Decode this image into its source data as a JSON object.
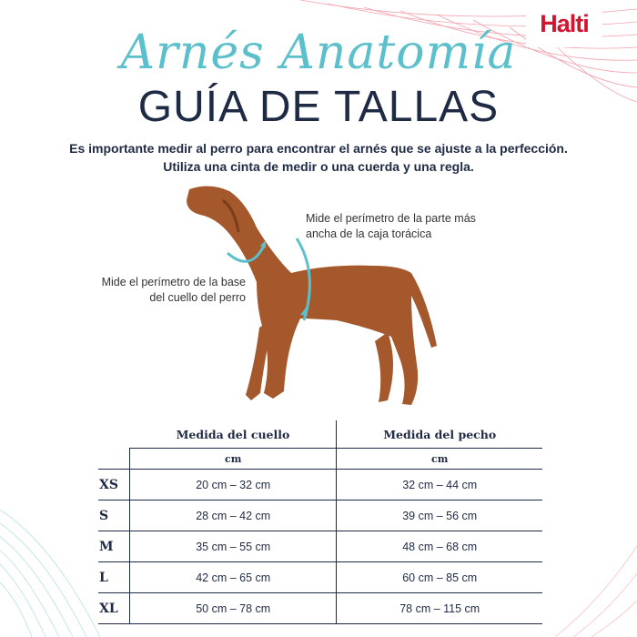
{
  "brand": {
    "logo": "Halti",
    "color": "#d2152f"
  },
  "colors": {
    "accent": "#5cc0cc",
    "navy": "#1f2a44",
    "dog": "#a4582c"
  },
  "header": {
    "script_title": "Arnés Anatomía",
    "title": "GUÍA DE TALLAS",
    "intro_line1": "Es importante medir al perro para encontrar el arnés que se ajuste a la perfección.",
    "intro_line2": "Utiliza una cinta de medir o una cuerda y una regla."
  },
  "illustration": {
    "chest_note": "Mide el perímetro de la parte más ancha de la caja torácica",
    "neck_note": "Mide el perímetro de la base del cuello del perro",
    "icons": [
      "dog-illustration",
      "neck-measure-arrow-icon",
      "chest-measure-arrow-icon"
    ]
  },
  "size_table": {
    "columns": [
      "Medida del cuello",
      "Medida del pecho"
    ],
    "units": [
      "cm",
      "cm"
    ],
    "rows": [
      {
        "size": "XS",
        "neck": "20 cm – 32 cm",
        "chest": "32 cm – 44 cm"
      },
      {
        "size": "S",
        "neck": "28 cm – 42 cm",
        "chest": "39 cm – 56 cm"
      },
      {
        "size": "M",
        "neck": "35 cm – 55 cm",
        "chest": "48 cm – 68 cm"
      },
      {
        "size": "L",
        "neck": "42 cm – 65 cm",
        "chest": "60 cm – 85 cm"
      },
      {
        "size": "XL",
        "neck": "50 cm – 78 cm",
        "chest": "78 cm – 115 cm"
      }
    ]
  }
}
